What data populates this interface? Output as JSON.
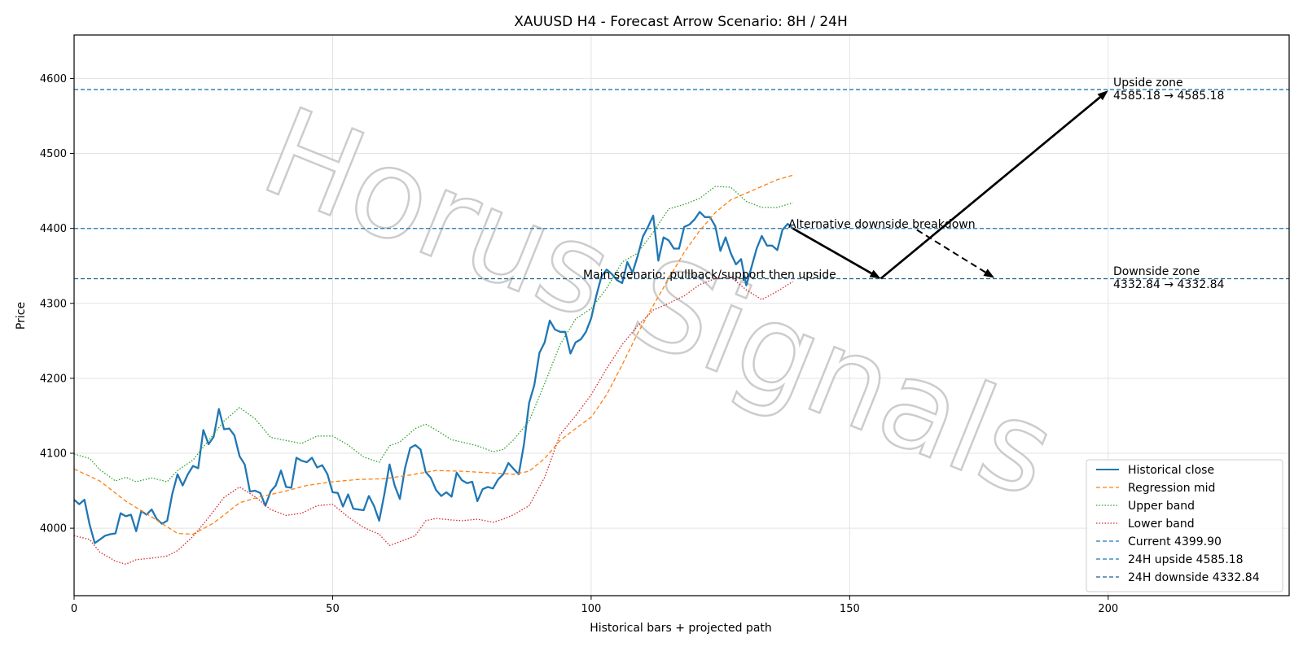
{
  "chart_data": {
    "type": "line",
    "title": "XAUUSD H4 - Forecast Arrow Scenario: 8H / 24H",
    "xlabel": "Historical bars + projected path",
    "ylabel": "Price",
    "xlim": [
      0,
      235
    ],
    "ylim": [
      3910,
      4658
    ],
    "xticks": [
      0,
      50,
      100,
      150,
      200
    ],
    "yticks": [
      4000,
      4100,
      4200,
      4300,
      4400,
      4500,
      4600
    ],
    "grid": true,
    "legend_position": "bottom-right",
    "watermark": "Horus Signals",
    "series": [
      {
        "name": "Historical close",
        "color": "#1f77b4",
        "style": "solid",
        "values": [
          4038,
          4032,
          4038,
          4005,
          3980,
          3985,
          3990,
          3992,
          3993,
          4020,
          4016,
          4018,
          3996,
          4023,
          4018,
          4025,
          4012,
          4006,
          4010,
          4046,
          4072,
          4057,
          4072,
          4083,
          4080,
          4131,
          4112,
          4122,
          4159,
          4132,
          4133,
          4124,
          4096,
          4085,
          4049,
          4050,
          4047,
          4030,
          4049,
          4057,
          4077,
          4055,
          4054,
          4094,
          4090,
          4088,
          4094,
          4081,
          4084,
          4072,
          4048,
          4047,
          4029,
          4045,
          4026,
          4025,
          4024,
          4043,
          4030,
          4010,
          4045,
          4085,
          4057,
          4039,
          4080,
          4107,
          4111,
          4105,
          4075,
          4067,
          4051,
          4043,
          4048,
          4042,
          4074,
          4064,
          4060,
          4062,
          4036,
          4052,
          4055,
          4053,
          4065,
          4072,
          4087,
          4079,
          4072,
          4112,
          4167,
          4191,
          4234,
          4248,
          4277,
          4265,
          4262,
          4262,
          4233,
          4248,
          4252,
          4262,
          4280,
          4310,
          4336,
          4345,
          4339,
          4331,
          4327,
          4355,
          4341,
          4363,
          4389,
          4402,
          4417,
          4357,
          4388,
          4384,
          4373,
          4373,
          4402,
          4405,
          4412,
          4422,
          4415,
          4415,
          4403,
          4370,
          4388,
          4367,
          4352,
          4359,
          4324,
          4348,
          4373,
          4390,
          4377,
          4377,
          4371,
          4398,
          4406,
          4400
        ]
      },
      {
        "name": "Regression mid",
        "color": "#ff7f0e",
        "style": "dashed",
        "points": [
          [
            0,
            4079
          ],
          [
            5,
            4063
          ],
          [
            10,
            4036
          ],
          [
            15,
            4015
          ],
          [
            20,
            3993
          ],
          [
            23,
            3992
          ],
          [
            27,
            4007
          ],
          [
            32,
            4034
          ],
          [
            36,
            4042
          ],
          [
            40,
            4048
          ],
          [
            45,
            4057
          ],
          [
            50,
            4062
          ],
          [
            55,
            4065
          ],
          [
            60,
            4066
          ],
          [
            65,
            4071
          ],
          [
            70,
            4077
          ],
          [
            75,
            4076
          ],
          [
            80,
            4074
          ],
          [
            85,
            4072
          ],
          [
            88,
            4076
          ],
          [
            91,
            4093
          ],
          [
            94,
            4117
          ],
          [
            97,
            4133
          ],
          [
            100,
            4148
          ],
          [
            103,
            4178
          ],
          [
            106,
            4218
          ],
          [
            109,
            4260
          ],
          [
            112,
            4297
          ],
          [
            115,
            4333
          ],
          [
            118,
            4368
          ],
          [
            121,
            4397
          ],
          [
            124,
            4421
          ],
          [
            127,
            4438
          ],
          [
            130,
            4447
          ],
          [
            133,
            4456
          ],
          [
            136,
            4465
          ],
          [
            139,
            4471
          ]
        ]
      },
      {
        "name": "Upper band",
        "color": "#2ca02c",
        "style": "dotted",
        "points": [
          [
            0,
            4099
          ],
          [
            3,
            4093
          ],
          [
            5,
            4078
          ],
          [
            8,
            4063
          ],
          [
            10,
            4068
          ],
          [
            12,
            4062
          ],
          [
            15,
            4067
          ],
          [
            18,
            4062
          ],
          [
            20,
            4077
          ],
          [
            23,
            4091
          ],
          [
            26,
            4117
          ],
          [
            29,
            4143
          ],
          [
            32,
            4161
          ],
          [
            35,
            4146
          ],
          [
            38,
            4121
          ],
          [
            41,
            4117
          ],
          [
            44,
            4113
          ],
          [
            47,
            4123
          ],
          [
            50,
            4123
          ],
          [
            53,
            4111
          ],
          [
            56,
            4095
          ],
          [
            59,
            4088
          ],
          [
            61,
            4110
          ],
          [
            63,
            4115
          ],
          [
            66,
            4133
          ],
          [
            68,
            4139
          ],
          [
            70,
            4131
          ],
          [
            73,
            4118
          ],
          [
            75,
            4115
          ],
          [
            78,
            4110
          ],
          [
            81,
            4102
          ],
          [
            83,
            4105
          ],
          [
            85,
            4118
          ],
          [
            88,
            4143
          ],
          [
            91,
            4193
          ],
          [
            94,
            4245
          ],
          [
            97,
            4279
          ],
          [
            100,
            4293
          ],
          [
            103,
            4320
          ],
          [
            106,
            4355
          ],
          [
            109,
            4367
          ],
          [
            112,
            4395
          ],
          [
            115,
            4426
          ],
          [
            118,
            4432
          ],
          [
            121,
            4440
          ],
          [
            124,
            4456
          ],
          [
            127,
            4455
          ],
          [
            130,
            4436
          ],
          [
            133,
            4428
          ],
          [
            136,
            4428
          ],
          [
            139,
            4434
          ]
        ]
      },
      {
        "name": "Lower band",
        "color": "#d62728",
        "style": "dotted",
        "points": [
          [
            0,
            3990
          ],
          [
            3,
            3985
          ],
          [
            5,
            3968
          ],
          [
            8,
            3956
          ],
          [
            10,
            3952
          ],
          [
            12,
            3958
          ],
          [
            15,
            3960
          ],
          [
            18,
            3963
          ],
          [
            20,
            3970
          ],
          [
            23,
            3989
          ],
          [
            26,
            4014
          ],
          [
            29,
            4041
          ],
          [
            32,
            4055
          ],
          [
            35,
            4042
          ],
          [
            38,
            4025
          ],
          [
            41,
            4017
          ],
          [
            44,
            4020
          ],
          [
            47,
            4030
          ],
          [
            50,
            4032
          ],
          [
            53,
            4015
          ],
          [
            56,
            4001
          ],
          [
            59,
            3992
          ],
          [
            61,
            3977
          ],
          [
            63,
            3982
          ],
          [
            66,
            3990
          ],
          [
            68,
            4010
          ],
          [
            70,
            4013
          ],
          [
            73,
            4011
          ],
          [
            75,
            4010
          ],
          [
            78,
            4012
          ],
          [
            81,
            4008
          ],
          [
            83,
            4012
          ],
          [
            85,
            4018
          ],
          [
            88,
            4030
          ],
          [
            91,
            4068
          ],
          [
            94,
            4125
          ],
          [
            97,
            4150
          ],
          [
            100,
            4178
          ],
          [
            103,
            4213
          ],
          [
            106,
            4245
          ],
          [
            109,
            4270
          ],
          [
            112,
            4291
          ],
          [
            115,
            4300
          ],
          [
            118,
            4310
          ],
          [
            121,
            4325
          ],
          [
            124,
            4333
          ],
          [
            127,
            4335
          ],
          [
            130,
            4318
          ],
          [
            133,
            4305
          ],
          [
            136,
            4316
          ],
          [
            139,
            4329
          ]
        ]
      }
    ],
    "levels": [
      {
        "name": "Current 4399.90",
        "value": 4399.9,
        "color": "#1f77b4"
      },
      {
        "name": "24H upside 4585.18",
        "value": 4585.18,
        "color": "#1f77b4"
      },
      {
        "name": "24H downside 4332.84",
        "value": 4332.84,
        "color": "#1f5f8b"
      }
    ],
    "annotations": [
      {
        "text": "Alternative downside breakdown",
        "x": 139,
        "y": 4400
      },
      {
        "text": "Main scenario: pullback/support then upside",
        "x": 99,
        "y": 4336
      },
      {
        "text_line1": "Upside zone",
        "text_line2": "4585.18 → 4585.18",
        "x": 202,
        "y": 4585.18
      },
      {
        "text_line1": "Downside zone",
        "text_line2": "4332.84 → 4332.84",
        "x": 202,
        "y": 4332.84
      }
    ],
    "arrows": [
      {
        "from": [
          139,
          4400
        ],
        "to": [
          156,
          4333
        ],
        "style": "solid"
      },
      {
        "from": [
          156,
          4333
        ],
        "to": [
          200,
          4584
        ],
        "style": "solid"
      },
      {
        "from": [
          163,
          4398
        ],
        "to": [
          178,
          4334
        ],
        "style": "dashed"
      }
    ]
  }
}
